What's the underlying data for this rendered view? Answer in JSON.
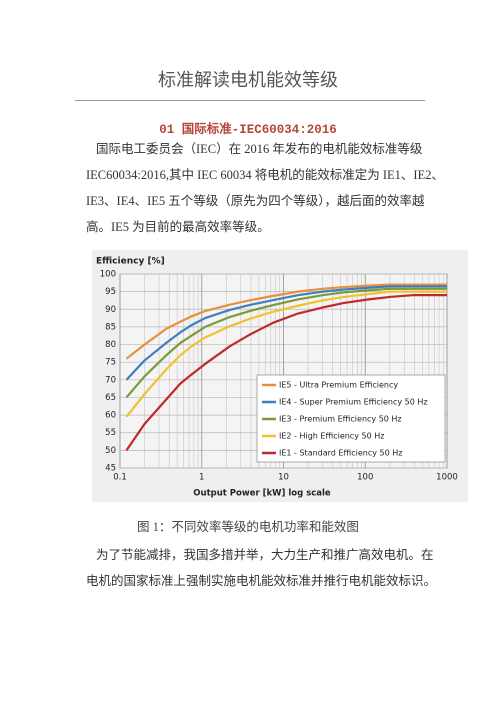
{
  "title": "标准解读电机能效等级",
  "section_heading": "01 国际标准-IEC60034:2016",
  "paragraphs": [
    {
      "lines": [
        "国际电工委员会（IEC）在 2016 年发布的电机能效标准等级",
        "IEC60034:2016,其中 IEC 60034 将电机的能效标准定为 IE1、IE2、",
        "IE3、IE4、IE5 五个等级（原先为四个等级），越后面的效率越",
        "高。IE5 为目前的最高效率等级。"
      ]
    },
    {
      "lines": [
        "为了节能减排，我国多措并举，大力生产和推广高效电机。在",
        "电机的国家标准上强制实施电机能效标准并推行电机能效标识。"
      ]
    }
  ],
  "caption": "图 1：不同效率等级的电机功率和能效图",
  "chart_data": {
    "type": "line",
    "title": "Efficiency [%]",
    "x_label": "Output Power [kW]   log scale",
    "x_scale": "log",
    "grid": true,
    "legend_position": "lower right",
    "x": [
      0.12,
      0.2,
      0.37,
      0.55,
      0.75,
      1.1,
      2.2,
      4,
      7.5,
      15,
      30,
      55,
      110,
      200,
      375,
      1000
    ],
    "xlim": [
      0.1,
      1000
    ],
    "xticks": [
      0.1,
      1,
      10,
      100,
      1000
    ],
    "ylim": [
      45,
      100
    ],
    "yticks": [
      45,
      50,
      55,
      60,
      65,
      70,
      75,
      80,
      85,
      90,
      95,
      100
    ],
    "series": [
      {
        "name": "IE5 - Ultra Premium Efficiency",
        "color": "#e8913a",
        "values": [
          76,
          80,
          84.5,
          86.5,
          88,
          89.5,
          91.3,
          92.6,
          93.8,
          95,
          95.8,
          96.3,
          96.7,
          97,
          97,
          97
        ]
      },
      {
        "name": "IE4 - Super Premium Efficiency 50 Hz",
        "color": "#3f7fbf",
        "values": [
          70,
          75.5,
          80.5,
          83.5,
          85.5,
          87.5,
          89.8,
          91.3,
          92.6,
          94,
          95,
          95.6,
          96.1,
          96.5,
          96.5,
          96.5
        ]
      },
      {
        "name": "IE3 - Premium Efficiency 50 Hz",
        "color": "#7a9a3a",
        "values": [
          65,
          71,
          77,
          80.5,
          82.5,
          85,
          87.8,
          89.6,
          91.2,
          92.8,
          94,
          94.8,
          95.4,
          95.8,
          95.8,
          95.8
        ]
      },
      {
        "name": "IE2 - High Efficiency 50 Hz",
        "color": "#f2c12e",
        "values": [
          59.5,
          66,
          73,
          77,
          79.5,
          82,
          85.2,
          87.4,
          89.3,
          91,
          92.5,
          93.5,
          94.3,
          95,
          95,
          95
        ]
      },
      {
        "name": "IE1 - Standard Efficiency 50 Hz",
        "color": "#c0282d",
        "values": [
          50,
          57.5,
          64.5,
          69,
          71.5,
          74.5,
          79.5,
          83,
          86.2,
          88.8,
          90.5,
          91.8,
          92.8,
          93.5,
          94,
          94
        ]
      }
    ]
  }
}
